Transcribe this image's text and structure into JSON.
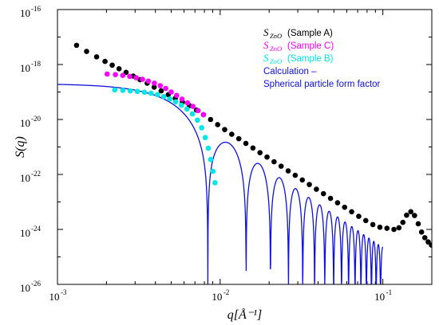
{
  "chart_data": {
    "type": "scatter",
    "x_scale": "log",
    "y_scale": "log",
    "xlim": [
      0.001,
      0.2
    ],
    "ylim": [
      1e-26,
      1e-16
    ],
    "xlabel": "q[Å⁻¹]",
    "ylabel": "S(q)",
    "x_ticks": [
      {
        "value": 0.001,
        "label": "10",
        "exp": "-3"
      },
      {
        "value": 0.01,
        "label": "10",
        "exp": "-2"
      },
      {
        "value": 0.1,
        "label": "10",
        "exp": "-1"
      }
    ],
    "y_ticks": [
      {
        "value": 1e-26,
        "label": "10",
        "exp": "-26"
      },
      {
        "value": 1e-24,
        "label": "10",
        "exp": "-24"
      },
      {
        "value": 1e-22,
        "label": "10",
        "exp": "-22"
      },
      {
        "value": 1e-20,
        "label": "10",
        "exp": "-20"
      },
      {
        "value": 1e-18,
        "label": "10",
        "exp": "-18"
      },
      {
        "value": 1e-16,
        "label": "10",
        "exp": "-16"
      }
    ],
    "legend_position": "top-right",
    "legend": [
      {
        "symbol": "S",
        "sub": "ZnO",
        "label": "(Sample A)",
        "color": "#000000",
        "kind": "marker"
      },
      {
        "symbol": "S",
        "sub": "ZnO",
        "label": "(Sample C)",
        "color": "#ff00ff",
        "kind": "marker"
      },
      {
        "symbol": "S",
        "sub": "ZnO",
        "label": "(Sample B)",
        "color": "#00e5e5",
        "kind": "marker"
      },
      {
        "symbol": "",
        "sub": "",
        "label": "Calculation –",
        "color": "#1010dd",
        "kind": "line"
      },
      {
        "symbol": "",
        "sub": "",
        "label": "Spherical particle form factor",
        "color": "#1010dd",
        "kind": "line"
      }
    ],
    "series": [
      {
        "name": "Sample A",
        "kind": "scatter",
        "color": "#000000",
        "x": [
          0.00131,
          0.00151,
          0.00174,
          0.00196,
          0.00217,
          0.00239,
          0.00264,
          0.00292,
          0.00322,
          0.00356,
          0.00393,
          0.00434,
          0.0048,
          0.0053,
          0.00586,
          0.00647,
          0.00715,
          0.0079,
          0.00873,
          0.00965,
          0.01066,
          0.01178,
          0.01302,
          0.01439,
          0.0159,
          0.01757,
          0.01941,
          0.02145,
          0.0237,
          0.02619,
          0.02894,
          0.03198,
          0.03534,
          0.03905,
          0.04315,
          0.04768,
          0.05269,
          0.05822,
          0.06433,
          0.07109,
          0.07855,
          0.0868,
          0.09591,
          0.106,
          0.117,
          0.1256,
          0.1328,
          0.14,
          0.1486,
          0.1566,
          0.165,
          0.173,
          0.1812,
          0.19,
          0.199
        ],
        "y": [
          5e-18,
          3e-18,
          1.9e-18,
          1.3e-18,
          9.5e-19,
          7e-19,
          5.2e-19,
          3.8e-19,
          2.8e-19,
          2.1e-19,
          1.5e-19,
          1.1e-19,
          8e-20,
          5.9e-20,
          4.3e-20,
          3.2e-20,
          2.2e-20,
          1.5e-20,
          1e-20,
          6.5e-21,
          4.3e-21,
          2.9e-21,
          2e-21,
          1.35e-21,
          9.2e-22,
          6.2e-22,
          4.3e-22,
          2.9e-22,
          2e-22,
          1.35e-22,
          9.3e-23,
          6.3e-23,
          4.3e-23,
          2.9e-23,
          2e-23,
          1.35e-23,
          9.3e-24,
          6.4e-24,
          4.4e-24,
          3e-24,
          2.1e-24,
          1.5e-24,
          1.2e-24,
          1.1e-24,
          1e-24,
          1.15e-24,
          1.8e-24,
          3.3e-24,
          4.4e-24,
          3.2e-24,
          1.6e-24,
          8e-25,
          5e-25,
          3.5e-25,
          2.7e-25
        ]
      },
      {
        "name": "Sample C",
        "kind": "scatter",
        "color": "#ff00ff",
        "x": [
          0.00202,
          0.00227,
          0.00252,
          0.00278,
          0.00305,
          0.00333,
          0.00362,
          0.00394,
          0.00428,
          0.00463,
          0.005,
          0.0054,
          0.00583,
          0.0063,
          0.0068,
          0.00732,
          0.00788
        ],
        "y": [
          4.5e-19,
          4.3e-19,
          4e-19,
          3.7e-19,
          3.3e-19,
          2.9e-19,
          2.5e-19,
          2.1e-19,
          1.7e-19,
          1.35e-19,
          1e-19,
          7.5e-20,
          5.5e-20,
          4e-20,
          3e-20,
          2.1e-20,
          1.5e-20
        ]
      },
      {
        "name": "Sample B",
        "kind": "scatter",
        "color": "#00e5e5",
        "x": [
          0.00225,
          0.00252,
          0.0028,
          0.0031,
          0.00342,
          0.00376,
          0.00412,
          0.0045,
          0.0049,
          0.00533,
          0.00578,
          0.00625,
          0.00675,
          0.00725,
          0.0077,
          0.0081,
          0.00845,
          0.00875,
          0.00903,
          0.0093
        ],
        "y": [
          1.2e-19,
          1.15e-19,
          1.1e-19,
          1.05e-19,
          9.8e-20,
          9e-20,
          8e-20,
          6.8e-20,
          5.6e-20,
          4.4e-20,
          3.3e-20,
          2.4e-20,
          1.6e-20,
          9.5e-21,
          5e-21,
          2.2e-21,
          9e-22,
          3.5e-22,
          1.3e-22,
          5e-23
        ]
      }
    ],
    "model_line": {
      "name": "Calculation – Spherical particle form factor",
      "kind": "sphere_form_factor",
      "color": "#1010dd",
      "I0": 2e-19,
      "radius_A": 535,
      "q_range": [
        0.001,
        0.1
      ],
      "floor": 1e-26
    }
  }
}
